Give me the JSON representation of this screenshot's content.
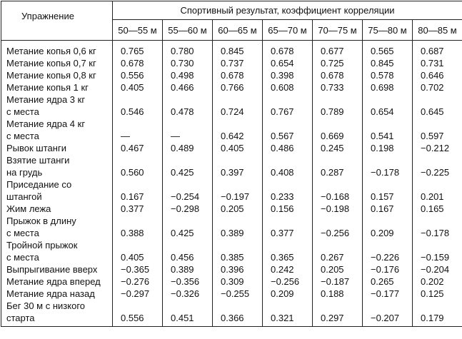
{
  "table": {
    "exercise_header": "Упражнение",
    "group_header": "Спортивный результат, коэффициент корреляции",
    "ranges": [
      "50—55 м",
      "55—60 м",
      "60—65 м",
      "65—70 м",
      "70—75 м",
      "75—80 м",
      "80—85 м"
    ],
    "rows": [
      {
        "name": [
          "Метание копья 0,6 кг"
        ],
        "values": [
          "0.765",
          "0.780",
          "0.845",
          "0.678",
          "0.677",
          "0.565",
          "0.687"
        ]
      },
      {
        "name": [
          "Метание копья 0,7 кг"
        ],
        "values": [
          "0.678",
          "0.730",
          "0.737",
          "0.654",
          "0.725",
          "0.845",
          "0.731"
        ]
      },
      {
        "name": [
          "Метание копья 0,8 кг"
        ],
        "values": [
          "0.556",
          "0.498",
          "0.678",
          "0.398",
          "0.678",
          "0.578",
          "0.646"
        ]
      },
      {
        "name": [
          "Метание копья 1 кг"
        ],
        "values": [
          "0.405",
          "0.466",
          "0.766",
          "0.608",
          "0.733",
          "0.698",
          "0.702"
        ]
      },
      {
        "name": [
          "Метание ядра 3 кг",
          "с места"
        ],
        "values": [
          "0.546",
          "0.478",
          "0.724",
          "0.767",
          "0.789",
          "0.654",
          "0.645"
        ]
      },
      {
        "name": [
          "Метание ядра 4 кг",
          "с места"
        ],
        "values": [
          "—",
          "—",
          "0.642",
          "0.567",
          "0.669",
          "0.541",
          "0.597"
        ]
      },
      {
        "name": [
          "Рывок штанги"
        ],
        "values": [
          "0.467",
          "0.489",
          "0.405",
          "0.486",
          "0.245",
          "0.198",
          "−0.212"
        ]
      },
      {
        "name": [
          "Взятие штанги",
          "на грудь"
        ],
        "values": [
          "0.560",
          "0.425",
          "0.397",
          "0.408",
          "0.287",
          "−0.178",
          "−0.225"
        ]
      },
      {
        "name": [
          "Приседание со",
          "штангой"
        ],
        "values": [
          "0.167",
          "−0.254",
          "−0.197",
          "0.233",
          "−0.168",
          "0.157",
          "0.201"
        ]
      },
      {
        "name": [
          "Жим лежа"
        ],
        "values": [
          "0.377",
          "−0.298",
          "0.205",
          "0.156",
          "−0.198",
          "0.167",
          "0.165"
        ]
      },
      {
        "name": [
          "Прыжок в длину",
          "с места"
        ],
        "values": [
          "0.388",
          "0.425",
          "0.389",
          "0.377",
          "−0.256",
          "0.209",
          "−0.178"
        ]
      },
      {
        "name": [
          "Тройной прыжок",
          "с места"
        ],
        "values": [
          "0.405",
          "0.456",
          "0.385",
          "0.365",
          "0.267",
          "−0.226",
          "−0.159"
        ]
      },
      {
        "name": [
          "Выпрыгивание вверх"
        ],
        "values": [
          "−0.365",
          "0.389",
          "0.396",
          "0.242",
          "0.205",
          "−0.176",
          "−0.204"
        ]
      },
      {
        "name": [
          "Метание ядра вперед"
        ],
        "values": [
          "−0.276",
          "−0.356",
          "0.309",
          "−0.256",
          "−0.187",
          "0.265",
          "0.202"
        ]
      },
      {
        "name": [
          "Метание ядра назад"
        ],
        "values": [
          "−0.297",
          "−0.326",
          "−0.255",
          "0.209",
          "0.188",
          "−0.177",
          "0.125"
        ]
      },
      {
        "name": [
          "Бег 30 м с низкого",
          "старта"
        ],
        "values": [
          "0.556",
          "0.451",
          "0.366",
          "0.321",
          "0.297",
          "−0.207",
          "0.179"
        ]
      }
    ]
  }
}
